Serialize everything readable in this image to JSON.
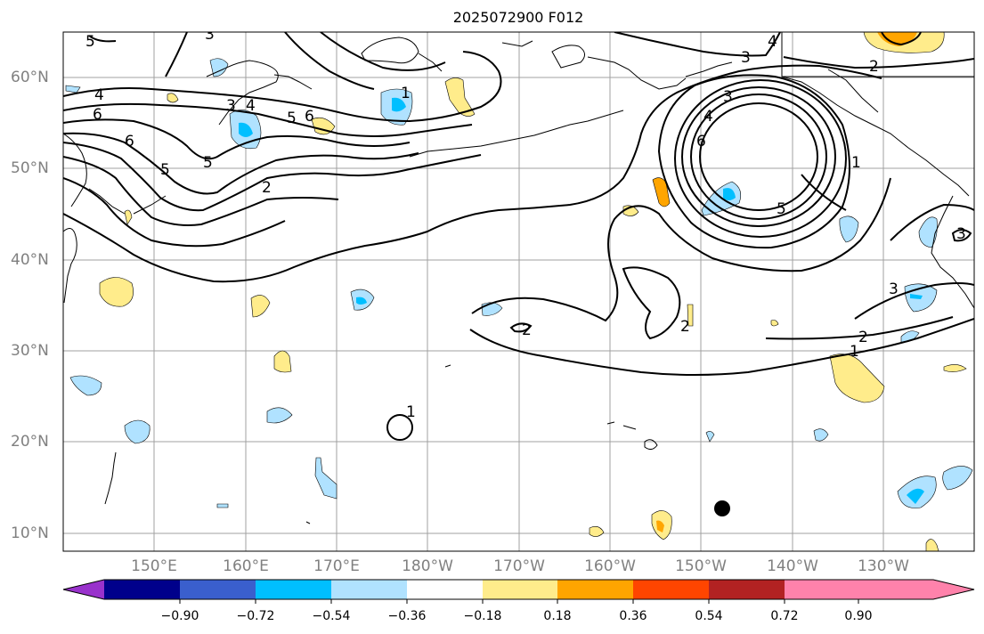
{
  "title": "2025072900 F012",
  "map": {
    "lat_labels": [
      "60°N",
      "50°N",
      "40°N",
      "30°N",
      "20°N",
      "10°N"
    ],
    "lon_labels": [
      "150°E",
      "160°E",
      "170°E",
      "180°W",
      "170°W",
      "160°W",
      "150°W",
      "140°W",
      "130°W"
    ],
    "contour_labels": [
      "5",
      "3",
      "4",
      "6",
      "5",
      "6",
      "5",
      "2",
      "3",
      "4",
      "5",
      "6",
      "1",
      "4",
      "3",
      "2",
      "3",
      "4",
      "6",
      "1",
      "5",
      "2",
      "1",
      "2",
      "3",
      "1",
      "3",
      "2"
    ],
    "marker": "filled-circle"
  },
  "colorbar": {
    "ticks": [
      "−0.90",
      "−0.72",
      "−0.54",
      "−0.36",
      "−0.18",
      "0.18",
      "0.36",
      "0.54",
      "0.72",
      "0.90"
    ],
    "colors": [
      "#9932CC",
      "#00008B",
      "#3A5FCD",
      "#00BFFF",
      "#B0E2FF",
      "#FFFFFF",
      "#FFEC8B",
      "#FFA500",
      "#FF4500",
      "#B22222",
      "#FF82AB"
    ]
  }
}
